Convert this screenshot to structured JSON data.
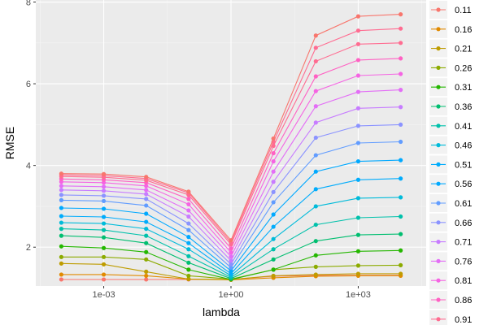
{
  "chart_data": {
    "type": "line",
    "xlabel": "lambda",
    "ylabel": "RMSE",
    "xscale": "log10",
    "x_tick_labels": [
      "1e-03",
      "1e+00",
      "1e+03"
    ],
    "x_ticks": [
      0.001,
      1,
      1000
    ],
    "y_ticks": [
      2,
      4,
      6,
      8
    ],
    "y_tick_labels": [
      "2",
      "4",
      "6",
      "8"
    ],
    "xlim": [
      2.5e-05,
      40000
    ],
    "ylim": [
      1.05,
      8.05
    ],
    "grid": true,
    "legend_position": "right",
    "x": [
      0.0001,
      0.001,
      0.01,
      0.1,
      1,
      10,
      100,
      1000,
      10000
    ],
    "series": [
      {
        "name": "0.11",
        "color": "#F8766D",
        "values": [
          1.21,
          1.21,
          1.21,
          1.21,
          1.21,
          1.29,
          1.31,
          1.31,
          1.31
        ]
      },
      {
        "name": "0.16",
        "color": "#E18A00",
        "values": [
          1.33,
          1.33,
          1.3,
          1.22,
          1.2,
          1.25,
          1.29,
          1.3,
          1.3
        ]
      },
      {
        "name": "0.21",
        "color": "#BE9C00",
        "values": [
          1.6,
          1.58,
          1.4,
          1.22,
          1.21,
          1.3,
          1.33,
          1.35,
          1.35
        ]
      },
      {
        "name": "0.26",
        "color": "#8CAB00",
        "values": [
          1.76,
          1.76,
          1.7,
          1.3,
          1.22,
          1.45,
          1.52,
          1.55,
          1.56
        ]
      },
      {
        "name": "0.31",
        "color": "#24B700",
        "values": [
          2.02,
          1.98,
          1.88,
          1.45,
          1.21,
          1.45,
          1.8,
          1.9,
          1.92
        ]
      },
      {
        "name": "0.36",
        "color": "#00BE70",
        "values": [
          2.28,
          2.24,
          2.1,
          1.62,
          1.23,
          1.7,
          2.15,
          2.3,
          2.32
        ]
      },
      {
        "name": "0.41",
        "color": "#00C1AB",
        "values": [
          2.45,
          2.42,
          2.28,
          1.78,
          1.26,
          1.95,
          2.55,
          2.72,
          2.75
        ]
      },
      {
        "name": "0.46",
        "color": "#00BBDA",
        "values": [
          2.6,
          2.58,
          2.45,
          1.95,
          1.3,
          2.2,
          3.0,
          3.2,
          3.22
        ]
      },
      {
        "name": "0.51",
        "color": "#00ACFC",
        "values": [
          2.76,
          2.74,
          2.62,
          2.1,
          1.35,
          2.5,
          3.42,
          3.65,
          3.68
        ]
      },
      {
        "name": "0.56",
        "color": "#00A9FF",
        "values": [
          2.96,
          2.94,
          2.82,
          2.25,
          1.42,
          2.8,
          3.85,
          4.1,
          4.13
        ]
      },
      {
        "name": "0.61",
        "color": "#619CFF",
        "values": [
          3.15,
          3.13,
          3.02,
          2.42,
          1.5,
          3.1,
          4.25,
          4.55,
          4.58
        ]
      },
      {
        "name": "0.66",
        "color": "#8B93FF",
        "values": [
          3.28,
          3.26,
          3.18,
          2.58,
          1.58,
          3.35,
          4.68,
          4.97,
          5.0
        ]
      },
      {
        "name": "0.71",
        "color": "#C77CFF",
        "values": [
          3.4,
          3.38,
          3.3,
          2.75,
          1.67,
          3.6,
          5.05,
          5.4,
          5.43
        ]
      },
      {
        "name": "0.76",
        "color": "#E36EF6",
        "values": [
          3.5,
          3.48,
          3.4,
          2.9,
          1.77,
          3.85,
          5.45,
          5.8,
          5.85
        ]
      },
      {
        "name": "0.81",
        "color": "#F564E3",
        "values": [
          3.6,
          3.58,
          3.5,
          3.05,
          1.87,
          4.1,
          5.82,
          6.2,
          6.24
        ]
      },
      {
        "name": "0.86",
        "color": "#FF61C3",
        "values": [
          3.67,
          3.65,
          3.58,
          3.18,
          1.97,
          4.3,
          6.18,
          6.58,
          6.62
        ]
      },
      {
        "name": "0.91",
        "color": "#FF6C91",
        "values": [
          3.73,
          3.71,
          3.64,
          3.28,
          2.07,
          4.48,
          6.55,
          6.97,
          7.0
        ]
      },
      {
        "name": "",
        "color": "#FF6C91",
        "values": [
          3.77,
          3.75,
          3.68,
          3.33,
          2.12,
          4.58,
          6.88,
          7.3,
          7.35
        ]
      },
      {
        "name": "",
        "color": "#F8766D",
        "values": [
          3.8,
          3.79,
          3.72,
          3.36,
          2.17,
          4.66,
          7.18,
          7.65,
          7.7
        ]
      }
    ]
  }
}
